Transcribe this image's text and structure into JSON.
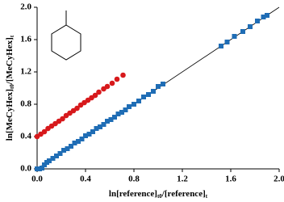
{
  "chart_data": {
    "type": "scatter",
    "x_label_parts": [
      "ln[reference]",
      "t0",
      "/[reference]",
      "t"
    ],
    "y_label_parts": [
      "ln[MeCyHex]",
      "t0",
      "/[MeCyHex]",
      "t"
    ],
    "xlim": [
      0,
      2
    ],
    "ylim": [
      0,
      2
    ],
    "xticks": [
      {
        "value": 0,
        "label": "0.0"
      },
      0.4,
      0.8,
      1.2,
      1.6,
      {
        "value": 2,
        "label": "2.0"
      }
    ],
    "yticks": [
      {
        "value": 0,
        "label": "0.0"
      },
      0.4,
      0.8,
      1.2,
      1.6,
      {
        "value": 2,
        "label": "2.0"
      }
    ],
    "trendline": {
      "x": [
        0,
        2
      ],
      "y": [
        0,
        2
      ],
      "color": "#000000"
    },
    "series": [
      {
        "marker": "circle",
        "color": "#d7191c",
        "x": [
          0,
          0.03,
          0.06,
          0.09,
          0.12,
          0.15,
          0.18,
          0.21,
          0.24,
          0.27,
          0.3,
          0.33,
          0.36,
          0.39,
          0.42,
          0.45,
          0.48,
          0.51,
          0.55,
          0.58,
          0.62,
          0.66,
          0.71
        ],
        "values": [
          0.4,
          0.43,
          0.46,
          0.5,
          0.53,
          0.56,
          0.59,
          0.62,
          0.66,
          0.69,
          0.72,
          0.75,
          0.79,
          0.82,
          0.85,
          0.88,
          0.91,
          0.95,
          0.99,
          1.02,
          1.06,
          1.11,
          1.16
        ]
      },
      {
        "marker": "square",
        "color": "#1f6db5",
        "x": [
          0,
          0.02,
          0.04,
          0.06,
          0.08,
          0.1,
          0.13,
          0.16,
          0.19,
          0.22,
          0.25,
          0.28,
          0.31,
          0.34,
          0.37,
          0.4,
          0.43,
          0.46,
          0.49,
          0.52,
          0.55,
          0.58,
          0.61,
          0.64,
          0.67,
          0.7,
          0.73,
          0.76,
          0.8,
          0.84,
          0.88,
          0.92,
          0.96,
          1.0,
          1.04,
          1.52,
          1.57,
          1.63,
          1.7,
          1.76,
          1.82,
          1.87,
          1.9
        ],
        "values": [
          0,
          0,
          0.01,
          0.05,
          0.08,
          0.1,
          0.13,
          0.16,
          0.19,
          0.23,
          0.25,
          0.28,
          0.32,
          0.34,
          0.37,
          0.41,
          0.43,
          0.46,
          0.5,
          0.52,
          0.55,
          0.59,
          0.61,
          0.64,
          0.68,
          0.7,
          0.73,
          0.77,
          0.8,
          0.84,
          0.89,
          0.92,
          0.96,
          1.02,
          1.05,
          1.52,
          1.57,
          1.64,
          1.7,
          1.76,
          1.83,
          1.88,
          1.9
        ]
      }
    ]
  }
}
